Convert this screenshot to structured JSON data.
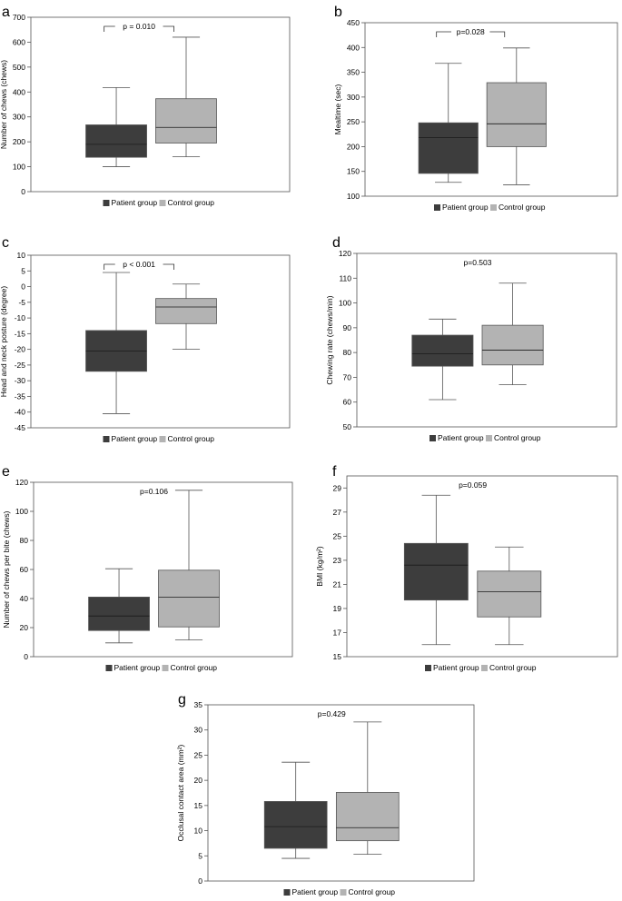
{
  "legend": {
    "items": [
      {
        "label": "Patient group",
        "color": "#3d3d3d"
      },
      {
        "label": "Control group",
        "color": "#b3b3b3"
      }
    ]
  },
  "chart_data": [
    {
      "type": "box",
      "panel": "a",
      "ylabel": "Number of chews (chews)",
      "ylim": [
        0,
        700
      ],
      "yticks": [
        0,
        100,
        200,
        300,
        400,
        500,
        600,
        700
      ],
      "yticklabels": [
        "0",
        "100",
        "200",
        "300",
        "400",
        "500",
        "600",
        "700"
      ],
      "pvalue": "p = 0.010",
      "bracket": true,
      "series": [
        {
          "name": "Patient group",
          "min": 100,
          "q1": 138,
          "median": 190,
          "q3": 268,
          "max": 418
        },
        {
          "name": "Control group",
          "min": 140,
          "q1": 195,
          "median": 258,
          "q3": 373,
          "max": 620
        }
      ]
    },
    {
      "type": "box",
      "panel": "b",
      "ylabel": "Mealtime (sec)",
      "ylim": [
        100,
        450
      ],
      "yticks": [
        100,
        150,
        200,
        250,
        300,
        350,
        400,
        450
      ],
      "yticklabels": [
        "100",
        "150",
        "200",
        "250",
        "300",
        "350",
        "400",
        "450"
      ],
      "pvalue": "p=0.028",
      "bracket": true,
      "series": [
        {
          "name": "Patient group",
          "min": 128,
          "q1": 146,
          "median": 218,
          "q3": 248,
          "max": 368
        },
        {
          "name": "Control group",
          "min": 123,
          "q1": 200,
          "median": 246,
          "q3": 329,
          "max": 399
        }
      ]
    },
    {
      "type": "box",
      "panel": "c",
      "ylabel": "Head and neck posture (degree)",
      "ylim": [
        -45,
        10
      ],
      "yticks": [
        -45,
        -40,
        -35,
        -30,
        -25,
        -20,
        -15,
        -10,
        -5,
        0,
        5,
        10
      ],
      "yticklabels": [
        "-45",
        "-40",
        "-35",
        "-30",
        "-25",
        "-20",
        "-15",
        "-10",
        "-5",
        "0",
        "5",
        "10"
      ],
      "pvalue": "p < 0.001",
      "bracket": true,
      "series": [
        {
          "name": "Patient group",
          "min": -40.5,
          "q1": -27.0,
          "median": -20.5,
          "q3": -14.0,
          "max": 4.5
        },
        {
          "name": "Control group",
          "min": -20.0,
          "q1": -11.8,
          "median": -6.5,
          "q3": -3.8,
          "max": 0.8
        }
      ]
    },
    {
      "type": "box",
      "panel": "d",
      "ylabel": "Chewing rate (chews/min)",
      "ylim": [
        50,
        120
      ],
      "yticks": [
        50,
        60,
        70,
        80,
        90,
        100,
        110,
        120
      ],
      "yticklabels": [
        "50",
        "60",
        "70",
        "80",
        "90",
        "100",
        "110",
        "120"
      ],
      "pvalue": "p=0.503",
      "bracket": false,
      "series": [
        {
          "name": "Patient group",
          "min": 61,
          "q1": 74.5,
          "median": 79.5,
          "q3": 87,
          "max": 93.5
        },
        {
          "name": "Control group",
          "min": 67,
          "q1": 75,
          "median": 81,
          "q3": 91,
          "max": 108
        }
      ]
    },
    {
      "type": "box",
      "panel": "e",
      "ylabel": "Number of chews per bite (chews)",
      "ylim": [
        0,
        120
      ],
      "yticks": [
        0,
        20,
        40,
        60,
        80,
        100,
        120
      ],
      "yticklabels": [
        "0",
        "20",
        "40",
        "60",
        "80",
        "100",
        "120"
      ],
      "pvalue": "p=0.106",
      "bracket": false,
      "series": [
        {
          "name": "Patient group",
          "min": 9.5,
          "q1": 18,
          "median": 28,
          "q3": 41,
          "max": 60.5
        },
        {
          "name": "Control group",
          "min": 11.5,
          "q1": 20.5,
          "median": 41,
          "q3": 59.5,
          "max": 114.5
        }
      ]
    },
    {
      "type": "box",
      "panel": "f",
      "ylabel": "BMI (kg/m²)",
      "ylim": [
        15,
        30
      ],
      "yticks": [
        15,
        17,
        19,
        21,
        23,
        25,
        27,
        29
      ],
      "yticklabels": [
        "15",
        "17",
        "19",
        "21",
        "23",
        "25",
        "27",
        "29"
      ],
      "pvalue": "p=0.059",
      "bracket": false,
      "series": [
        {
          "name": "Patient group",
          "min": 16,
          "q1": 19.7,
          "median": 22.6,
          "q3": 24.4,
          "max": 28.4
        },
        {
          "name": "Control group",
          "min": 16,
          "q1": 18.3,
          "median": 20.4,
          "q3": 22.1,
          "max": 24.1
        }
      ]
    },
    {
      "type": "box",
      "panel": "g",
      "ylabel": "Occlusal contact area (mm²)",
      "ylim": [
        0,
        35
      ],
      "yticks": [
        0,
        5,
        10,
        15,
        20,
        25,
        30,
        35
      ],
      "yticklabels": [
        "0",
        "5",
        "10",
        "15",
        "20",
        "25",
        "30",
        "35"
      ],
      "pvalue": "p=0.429",
      "bracket": false,
      "series": [
        {
          "name": "Patient group",
          "min": 4.5,
          "q1": 6.5,
          "median": 10.8,
          "q3": 15.8,
          "max": 23.6
        },
        {
          "name": "Control group",
          "min": 5.3,
          "q1": 8.0,
          "median": 10.6,
          "q3": 17.6,
          "max": 31.6
        }
      ]
    }
  ]
}
